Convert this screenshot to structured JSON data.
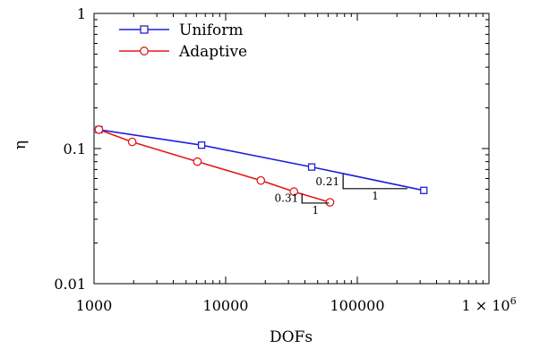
{
  "chart_data": {
    "type": "line",
    "xlabel": "DOFs",
    "ylabel": "η",
    "x_scale": "log",
    "y_scale": "log",
    "xlim": [
      1000,
      1000000
    ],
    "ylim": [
      0.01,
      1
    ],
    "x_ticks": [
      {
        "value": 1000,
        "label": "1000"
      },
      {
        "value": 10000,
        "label": "10000"
      },
      {
        "value": 100000,
        "label": "100000"
      }
    ],
    "x_max_label": {
      "prefix": "1 × 10",
      "exponent": "6"
    },
    "y_ticks": [
      {
        "value": 0.01,
        "label": "0.01"
      },
      {
        "value": 0.1,
        "label": "0.1"
      },
      {
        "value": 1,
        "label": "1"
      }
    ],
    "legend_position": "top-left",
    "series": [
      {
        "name": "Uniform",
        "color": "#1f1fdc",
        "marker": "square",
        "x": [
          1089,
          6561,
          45000,
          320000
        ],
        "y": [
          0.138,
          0.106,
          0.073,
          0.049
        ]
      },
      {
        "name": "Adaptive",
        "color": "#e01b1b",
        "marker": "circle",
        "x": [
          1089,
          1950,
          6100,
          18500,
          33000,
          62000
        ],
        "y": [
          0.138,
          0.112,
          0.08,
          0.058,
          0.048,
          0.04
        ]
      }
    ],
    "slope_triangles": [
      {
        "rate_label": "0.21",
        "run_label": "1",
        "x_start": 78000,
        "x_end": 240000,
        "y_low": 0.0505,
        "y_high": 0.0645
      },
      {
        "rate_label": "0.31",
        "run_label": "1",
        "x_start": 38000,
        "x_end": 61000,
        "y_low": 0.0395,
        "y_high": 0.0465
      }
    ]
  }
}
